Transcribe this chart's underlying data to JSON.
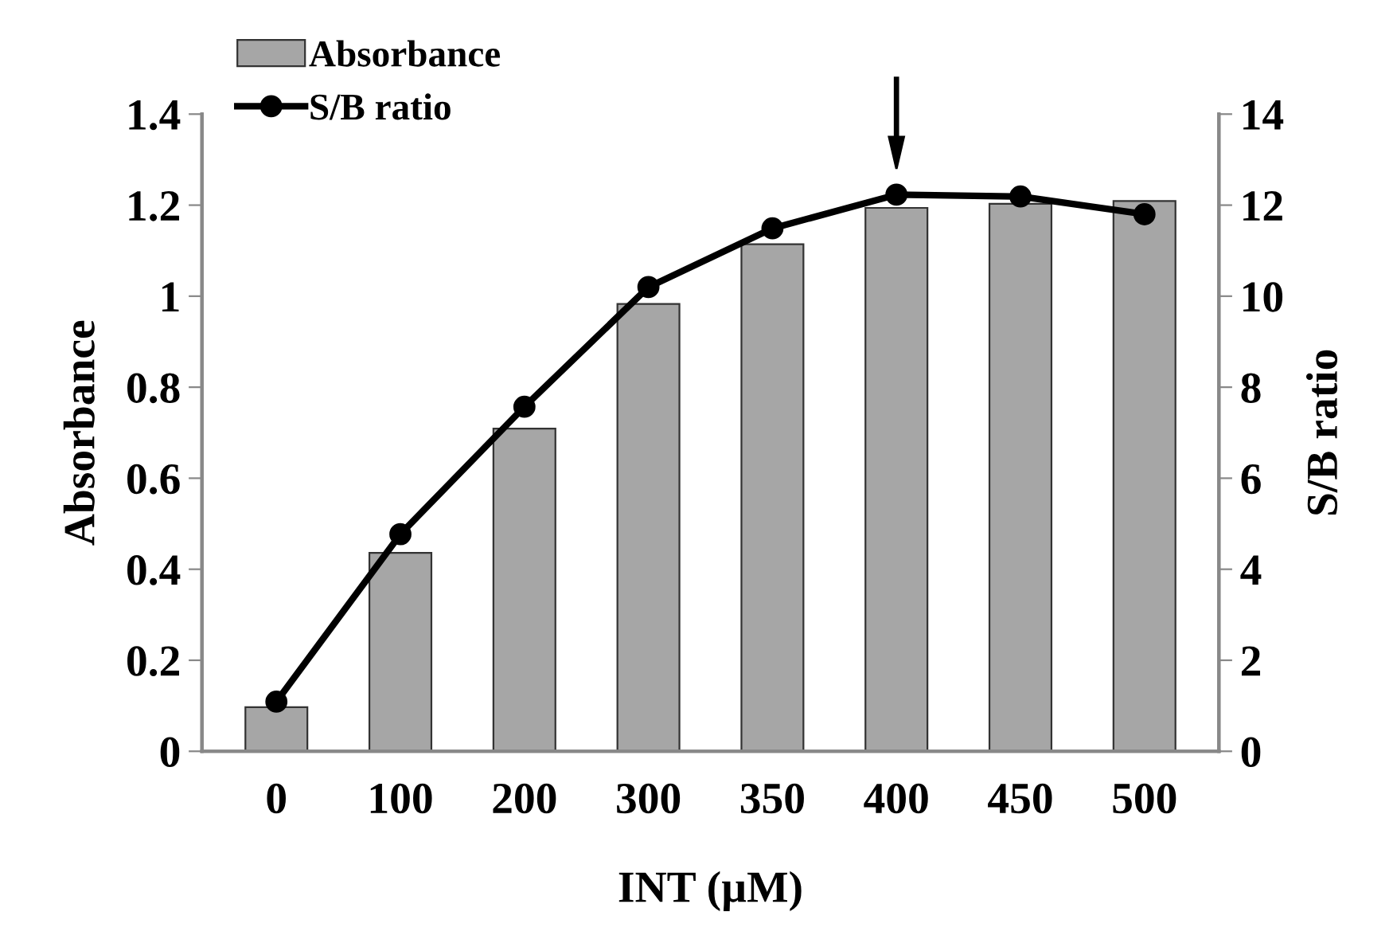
{
  "chart_data": {
    "type": "bar",
    "xlabel": "INT (µM)",
    "ylabel": "Absorbance",
    "y2label": "S/B ratio",
    "categories": [
      "0",
      "100",
      "200",
      "300",
      "350",
      "400",
      "450",
      "500"
    ],
    "series": [
      {
        "name": "Absorbance",
        "color": "#a6a6a6",
        "values": [
          0.097,
          0.436,
          0.709,
          0.983,
          1.114,
          1.194,
          1.203,
          1.209
        ]
      },
      {
        "name": "S/B ratio",
        "type": "line",
        "axis": "y2",
        "color": "#000000",
        "marker": "circle",
        "values": [
          1.09,
          4.77,
          7.57,
          10.2,
          11.49,
          12.23,
          12.19,
          11.8
        ]
      }
    ],
    "ylim": [
      0,
      1.4
    ],
    "yticks": [
      0,
      0.2,
      0.4,
      0.6,
      0.8,
      1,
      1.2,
      1.4
    ],
    "y2lim": [
      0,
      14
    ],
    "y2ticks": [
      0,
      2,
      4,
      6,
      8,
      10,
      12,
      14
    ],
    "legend": "top left",
    "grid": false
  }
}
